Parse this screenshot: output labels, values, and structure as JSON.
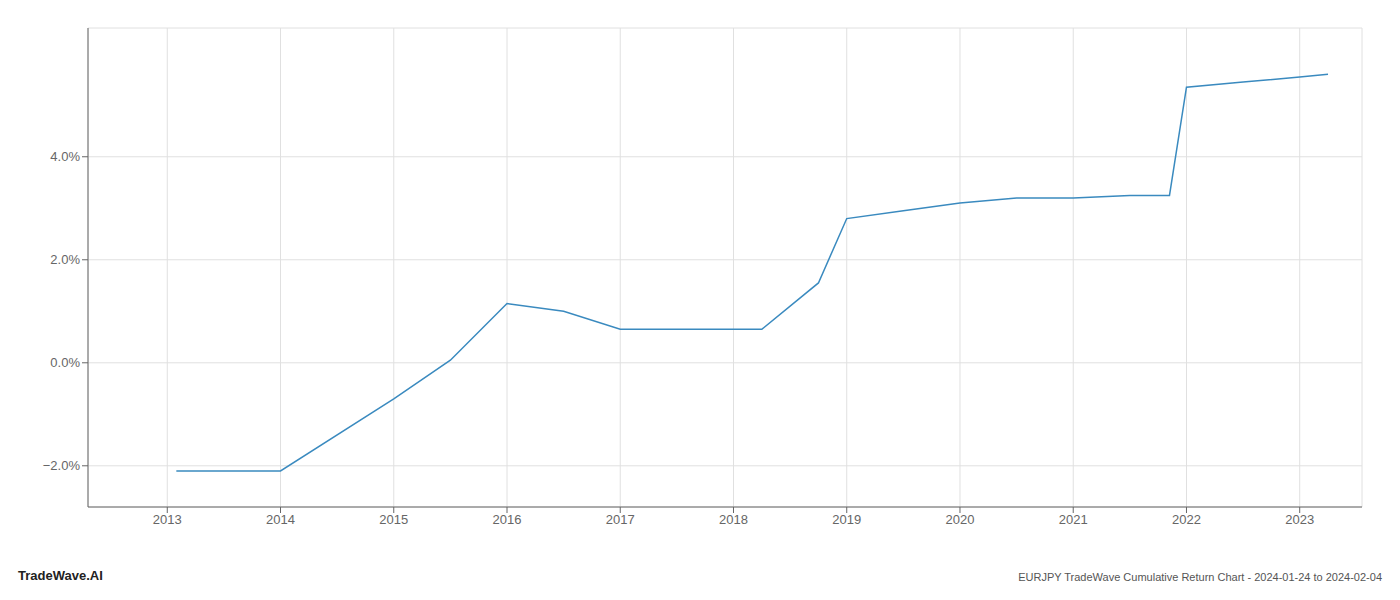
{
  "chart_data": {
    "type": "line",
    "annotations": [
      "TradeWave.AI",
      "EURJPY TradeWave Cumulative Return Chart - 2024-01-24 to 2024-02-04"
    ],
    "x": [
      2013.08,
      2014.0,
      2015.0,
      2015.5,
      2016.0,
      2016.5,
      2017.0,
      2017.75,
      2018.25,
      2018.75,
      2019.0,
      2019.5,
      2020.0,
      2020.5,
      2021.0,
      2021.5,
      2021.85,
      2022.0,
      2022.5,
      2023.0,
      2023.25
    ],
    "values": [
      -2.1,
      -2.1,
      -0.7,
      0.05,
      1.15,
      1.0,
      0.65,
      0.65,
      0.65,
      1.55,
      2.8,
      2.95,
      3.1,
      3.2,
      3.2,
      3.25,
      3.25,
      5.35,
      5.45,
      5.55,
      5.6
    ],
    "color": "#3a8abf",
    "xlim": [
      2012.3,
      2023.55
    ],
    "xticks": [
      2013,
      2014,
      2015,
      2016,
      2017,
      2018,
      2019,
      2020,
      2021,
      2022,
      2023
    ],
    "ylim": [
      -2.8,
      6.5
    ],
    "yticks": [
      {
        "value": -2.0,
        "label": "−2.0%"
      },
      {
        "value": 0.0,
        "label": "0.0%"
      },
      {
        "value": 2.0,
        "label": "2.0%"
      },
      {
        "value": 4.0,
        "label": "4.0%"
      }
    ],
    "grid": true
  }
}
